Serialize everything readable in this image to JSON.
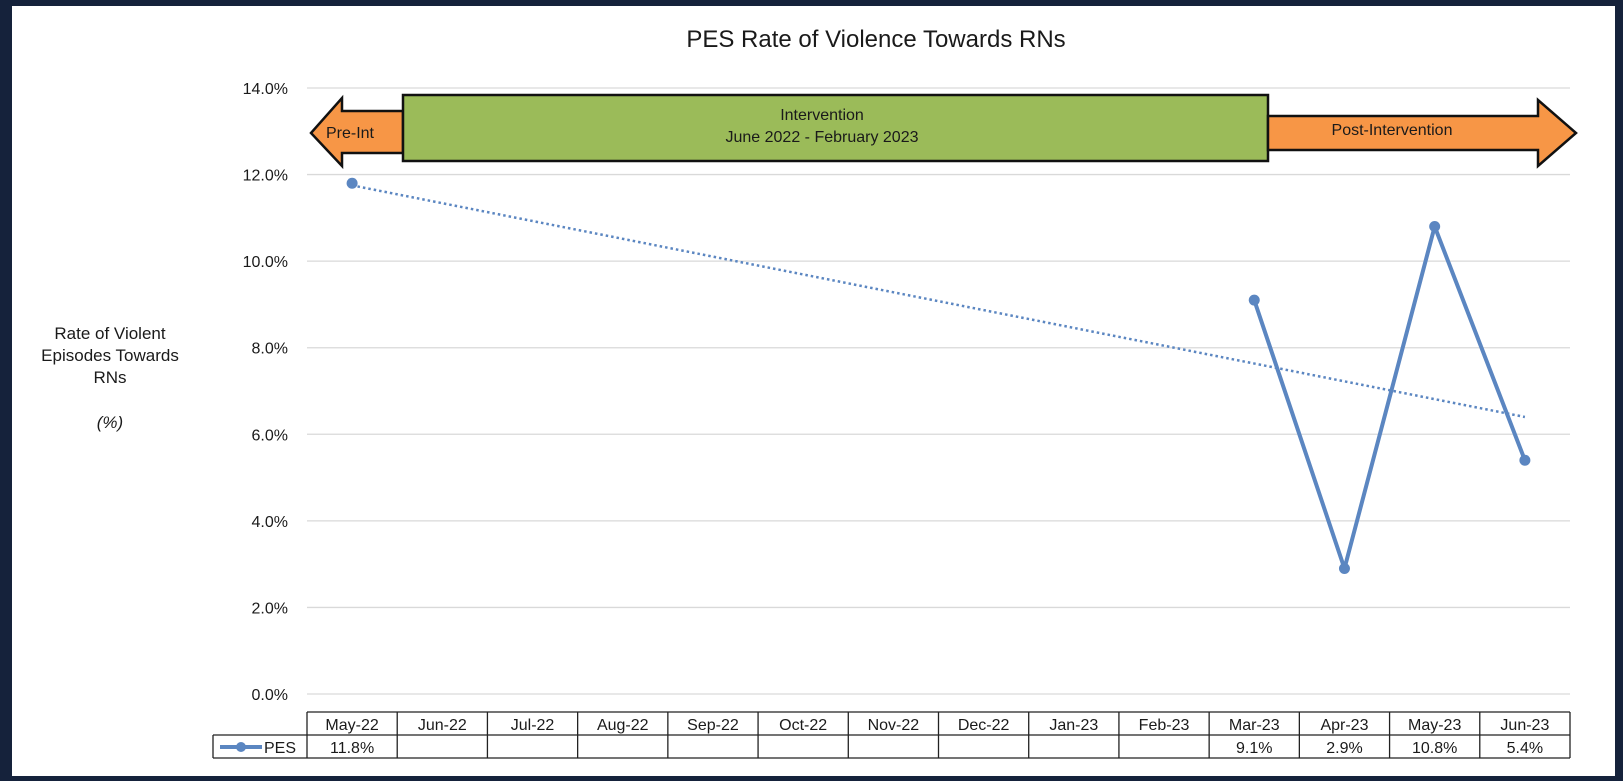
{
  "chart_data": {
    "type": "line",
    "title": "PES Rate of Violence Towards RNs",
    "ylabel_lines": [
      "Rate of Violent",
      "Episodes Towards",
      "RNs"
    ],
    "ylabel_unit": "(%)",
    "ylim": [
      0,
      14
    ],
    "yticks": [
      "0.0%",
      "2.0%",
      "4.0%",
      "6.0%",
      "8.0%",
      "10.0%",
      "12.0%",
      "14.0%"
    ],
    "categories": [
      "May-22",
      "Jun-22",
      "Jul-22",
      "Aug-22",
      "Sep-22",
      "Oct-22",
      "Nov-22",
      "Dec-22",
      "Jan-23",
      "Feb-23",
      "Mar-23",
      "Apr-23",
      "May-23",
      "Jun-23"
    ],
    "series": [
      {
        "name": "PES",
        "values": [
          11.8,
          null,
          null,
          null,
          null,
          null,
          null,
          null,
          null,
          null,
          9.1,
          2.9,
          10.8,
          5.4
        ],
        "labels": [
          "11.8%",
          "",
          "",
          "",
          "",
          "",
          "",
          "",
          "",
          "",
          "9.1%",
          "2.9%",
          "10.8%",
          "5.4%"
        ]
      }
    ],
    "trendline": {
      "style": "dotted",
      "from": 11.75,
      "to": 6.4
    },
    "gridlines": true,
    "data_table": true,
    "annotations": {
      "pre": "Pre-Int",
      "intervention_line1": "Intervention",
      "intervention_line2": "June 2022 - February 2023",
      "post": "Post-Intervention"
    },
    "colors": {
      "series": "#5b86c1",
      "trend": "#5b86c1",
      "arrow": "#f79646",
      "intervention": "#9bbb59",
      "grid": "#d9d9d9"
    }
  }
}
